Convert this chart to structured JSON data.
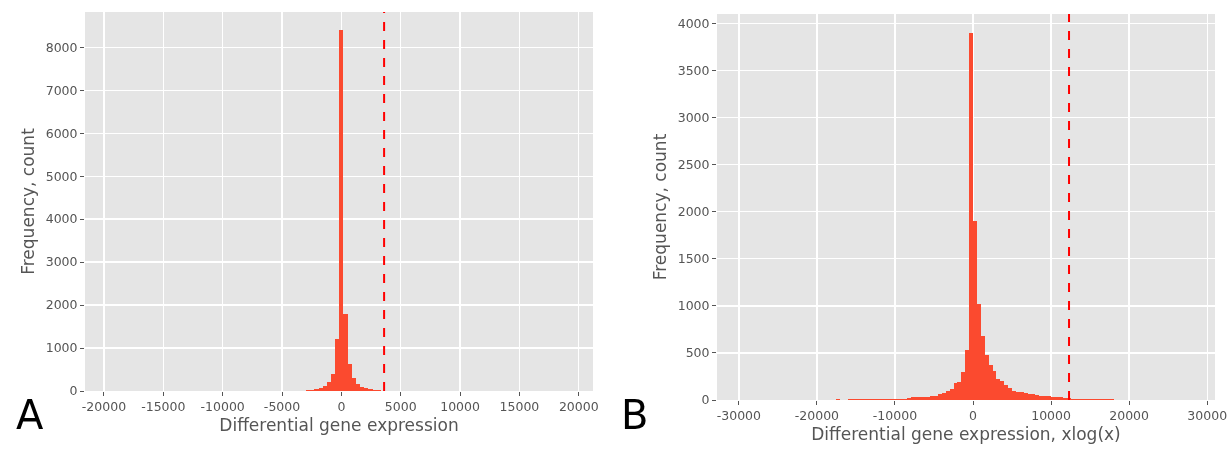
{
  "chart_data": [
    {
      "type": "histogram",
      "xlabel": "Differential gene expression",
      "ylabel": "Frequency, count",
      "annotations": [
        "A"
      ],
      "color": "#fb4a2f",
      "bins": [
        -3675,
        -3325,
        -2975,
        -2625,
        -2275,
        -1925,
        -1575,
        -1225,
        -875,
        -525,
        -175,
        175,
        525,
        875,
        1225,
        1575,
        1925,
        2275,
        2625,
        2975,
        3325,
        3675
      ],
      "values": [
        5,
        10,
        15,
        25,
        45,
        70,
        110,
        200,
        400,
        1220,
        8400,
        1800,
        640,
        300,
        160,
        100,
        60,
        40,
        25,
        15,
        8
      ],
      "xlim": [
        -21600,
        21200
      ],
      "xticks": [
        -20000,
        -15000,
        -10000,
        -5000,
        0,
        5000,
        10000,
        15000,
        20000
      ],
      "ylim": [
        0,
        8820
      ],
      "yticks": [
        0,
        1000,
        2000,
        3000,
        4000,
        5000,
        6000,
        7000,
        8000
      ],
      "ref_lines": [
        {
          "axis": "x",
          "value": 3600,
          "color": "#ff0000",
          "line_style": "dashed"
        }
      ],
      "grid": true
    },
    {
      "type": "histogram",
      "xlabel": "Differential gene expression, xlog(x)",
      "ylabel": "Frequency, count",
      "annotations": [
        "B"
      ],
      "color": "#fb4a2f",
      "bins": [
        -30000,
        -29500,
        -29000,
        -28500,
        -28000,
        -27500,
        -27000,
        -26500,
        -26000,
        -25500,
        -25000,
        -24500,
        -24000,
        -23500,
        -23000,
        -22500,
        -22000,
        -21500,
        -21000,
        -20500,
        -20000,
        -19500,
        -19000,
        -18500,
        -18000,
        -17500,
        -17000,
        -16500,
        -16000,
        -15500,
        -15000,
        -14500,
        -14000,
        -13500,
        -13000,
        -12500,
        -12000,
        -11500,
        -11000,
        -10500,
        -10000,
        -9500,
        -9000,
        -8500,
        -8000,
        -7500,
        -7000,
        -6500,
        -6000,
        -5500,
        -5000,
        -4500,
        -4000,
        -3500,
        -3000,
        -2500,
        -2000,
        -1500,
        -1000,
        -500,
        0,
        500,
        1000,
        1500,
        2000,
        2500,
        3000,
        3500,
        4000,
        4500,
        5000,
        5500,
        6000,
        6500,
        7000,
        7500,
        8000,
        8500,
        9000,
        9500,
        10000,
        10500,
        11000,
        11500,
        12000,
        12500,
        13000,
        13500,
        14000,
        14500,
        15000,
        15500,
        16000,
        16500,
        17000,
        17500,
        18000,
        18500,
        19000,
        19500,
        20000,
        20500,
        21000,
        21500,
        22000,
        22500,
        23000,
        23500,
        24000,
        24500,
        25000,
        25500,
        26000,
        26500,
        27000,
        27500,
        28000,
        28500,
        29000,
        29500,
        30000
      ],
      "values": [
        2,
        0,
        3,
        2,
        0,
        2,
        3,
        0,
        2,
        2,
        3,
        2,
        2,
        3,
        4,
        3,
        2,
        4,
        3,
        3,
        4,
        3,
        5,
        4,
        5,
        6,
        4,
        5,
        6,
        7,
        6,
        7,
        8,
        7,
        9,
        10,
        9,
        11,
        12,
        13,
        12,
        13,
        14,
        20,
        28,
        28,
        28,
        32,
        35,
        40,
        46,
        64,
        70,
        100,
        120,
        180,
        195,
        300,
        530,
        3900,
        1900,
        1020,
        680,
        480,
        375,
        310,
        225,
        205,
        155,
        130,
        95,
        90,
        80,
        70,
        65,
        60,
        50,
        45,
        40,
        38,
        35,
        30,
        28,
        25,
        18,
        15,
        14,
        12,
        12,
        10,
        9,
        8,
        8,
        7,
        6,
        6,
        5,
        5,
        4,
        4,
        4,
        3,
        3,
        4,
        2,
        3,
        2,
        2,
        3,
        2,
        2,
        1,
        2,
        2,
        1,
        2,
        1,
        2,
        1,
        1
      ],
      "xlim": [
        -32800,
        31000
      ],
      "xticks": [
        -30000,
        -20000,
        -10000,
        0,
        10000,
        20000,
        30000
      ],
      "ylim": [
        0,
        4100
      ],
      "yticks": [
        0,
        500,
        1000,
        1500,
        2000,
        2500,
        3000,
        3500,
        4000
      ],
      "ref_lines": [
        {
          "axis": "x",
          "value": 12300,
          "color": "#ff0000",
          "line_style": "dashed"
        }
      ],
      "grid": true
    }
  ]
}
